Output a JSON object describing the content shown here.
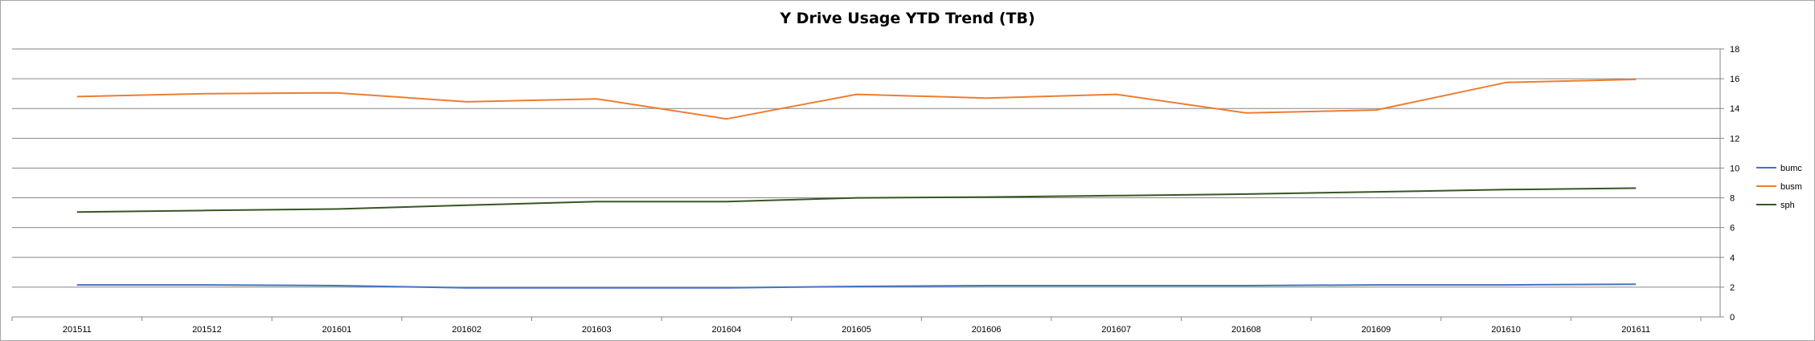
{
  "chart_data": {
    "type": "line",
    "title": "Y Drive Usage YTD Trend (TB)",
    "categories": [
      "201511",
      "201512",
      "201601",
      "201602",
      "201603",
      "201604",
      "201605",
      "201606",
      "201607",
      "201608",
      "201609",
      "201610",
      "201611"
    ],
    "series": [
      {
        "name": "bumc",
        "color": "#4472C4",
        "values": [
          2.15,
          2.15,
          2.1,
          1.95,
          1.95,
          1.95,
          2.05,
          2.1,
          2.1,
          2.1,
          2.15,
          2.15,
          2.2
        ]
      },
      {
        "name": "busm",
        "color": "#ED7D31",
        "values": [
          14.8,
          15.0,
          15.05,
          14.45,
          14.65,
          13.3,
          14.95,
          14.7,
          14.95,
          13.7,
          13.9,
          15.75,
          15.95
        ]
      },
      {
        "name": "sph",
        "color": "#375623",
        "values": [
          7.05,
          7.15,
          7.25,
          7.5,
          7.75,
          7.75,
          8.0,
          8.05,
          8.15,
          8.25,
          8.4,
          8.55,
          8.65
        ]
      }
    ],
    "ylim": [
      0,
      18
    ],
    "y_ticks": [
      "0",
      "2",
      "4",
      "6",
      "8",
      "10",
      "12",
      "14",
      "16",
      "18"
    ],
    "y_axis_position": "right",
    "grid": true,
    "legend_position": "right"
  }
}
